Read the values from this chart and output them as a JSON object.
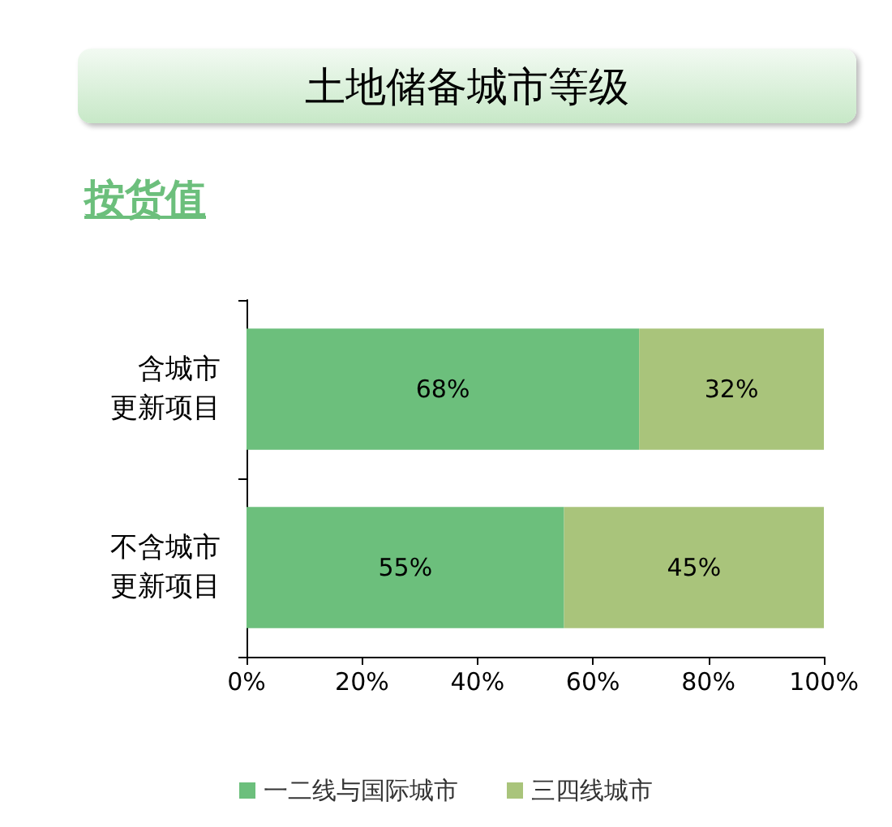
{
  "chart_data": {
    "type": "bar",
    "title": "土地储备城市等级",
    "subtitle": "按货值",
    "orientation": "horizontal",
    "stacked": true,
    "categories": [
      "含城市更新项目",
      "不含城市更新项目"
    ],
    "series": [
      {
        "name": "一二线与国际城市",
        "color": "#6cbf7c",
        "values": [
          68,
          55
        ],
        "value_labels": [
          "68%",
          "55%"
        ]
      },
      {
        "name": "三四线城市",
        "color": "#a9c47b",
        "values": [
          32,
          45
        ],
        "value_labels": [
          "32%",
          "45%"
        ]
      }
    ],
    "xlim": [
      0,
      100
    ],
    "xticks": [
      {
        "value": 0,
        "label": "0%"
      },
      {
        "value": 20,
        "label": "20%"
      },
      {
        "value": 40,
        "label": "40%"
      },
      {
        "value": 60,
        "label": "60%"
      },
      {
        "value": 80,
        "label": "80%"
      },
      {
        "value": 100,
        "label": "100%"
      }
    ],
    "grid": false,
    "legend": "bottom"
  }
}
